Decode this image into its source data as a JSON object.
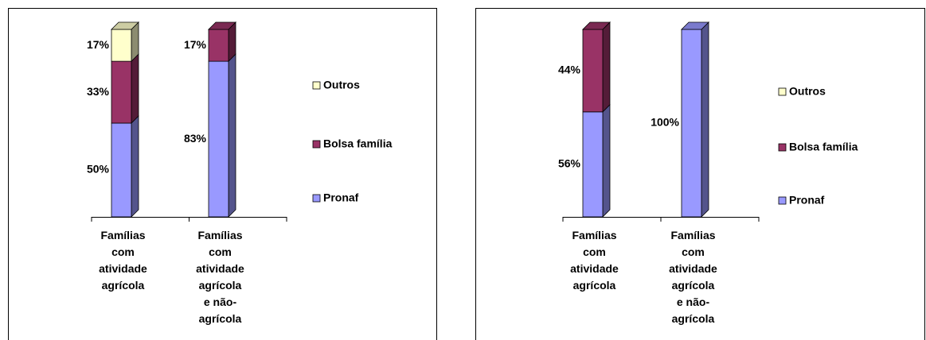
{
  "chart_data": [
    {
      "type": "bar",
      "stacked": true,
      "categories": [
        "Famílias\ncom\natividade\nagrícola",
        "Famílias\ncom\natividade\nagrícola\ne não-\nagrícola"
      ],
      "ylim": [
        0,
        100
      ],
      "series": [
        {
          "name": "Pronaf",
          "color": "#9999ff",
          "values": [
            50,
            83
          ],
          "value_labels": [
            "50%",
            "83%"
          ]
        },
        {
          "name": "Bolsa família",
          "color": "#993366",
          "values": [
            33,
            17
          ],
          "value_labels": [
            "33%",
            "17%"
          ]
        },
        {
          "name": "Outros",
          "color": "#ffffcc",
          "values": [
            17,
            null
          ],
          "value_labels": [
            "17%",
            null
          ]
        }
      ]
    },
    {
      "type": "bar",
      "stacked": true,
      "categories": [
        "Famílias\ncom\natividade\nagrícola",
        "Famílias\ncom\natividade\nagrícola\ne não-\nagrícola"
      ],
      "ylim": [
        0,
        100
      ],
      "series": [
        {
          "name": "Pronaf",
          "color": "#9999ff",
          "values": [
            56,
            100
          ],
          "value_labels": [
            "56%",
            "100%"
          ]
        },
        {
          "name": "Bolsa família",
          "color": "#993366",
          "values": [
            44,
            null
          ],
          "value_labels": [
            "44%",
            null
          ]
        },
        {
          "name": "Outros",
          "color": "#ffffcc",
          "values": [
            null,
            null
          ],
          "value_labels": [
            null,
            null
          ]
        }
      ]
    }
  ]
}
